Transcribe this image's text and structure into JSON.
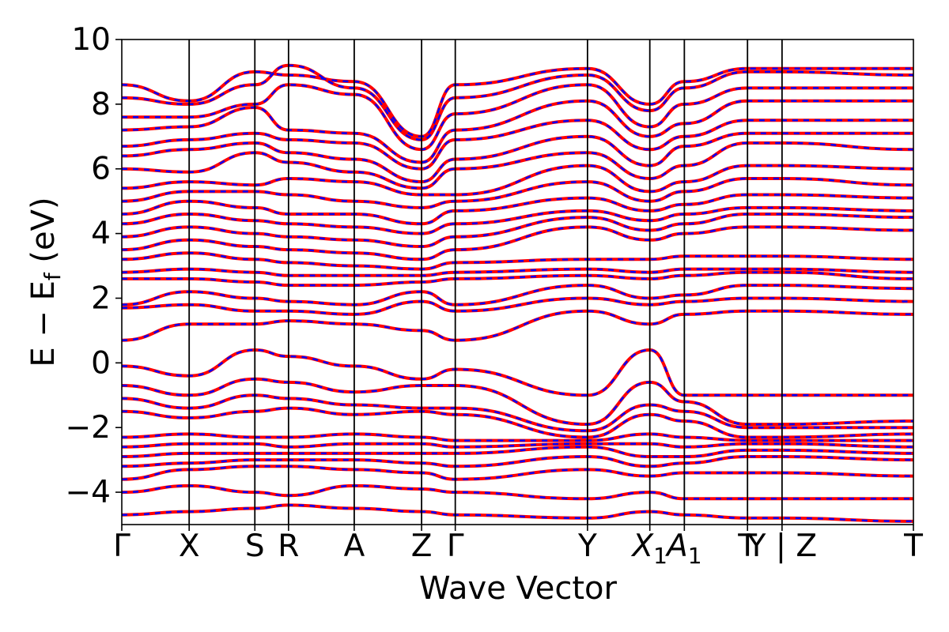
{
  "chart_data": {
    "type": "line",
    "title": "",
    "xlabel": "Wave Vector",
    "ylabel_main": "E − E",
    "ylabel_sub": "f",
    "ylabel_unit": " (eV)",
    "ylim": [
      -5,
      10
    ],
    "yticks": [
      {
        "value": -4,
        "label": "−4"
      },
      {
        "value": -2,
        "label": "−2"
      },
      {
        "value": 0,
        "label": "0"
      },
      {
        "value": 2,
        "label": "2"
      },
      {
        "value": 4,
        "label": "4"
      },
      {
        "value": 6,
        "label": "6"
      },
      {
        "value": 8,
        "label": "8"
      },
      {
        "value": 10,
        "label": "10"
      }
    ],
    "xlim": [
      0,
      9.4
    ],
    "kpoints": [
      {
        "pos": 0.0,
        "label": "Γ"
      },
      {
        "pos": 0.8,
        "label": "X"
      },
      {
        "pos": 1.58,
        "label": "S"
      },
      {
        "pos": 1.98,
        "label": "R"
      },
      {
        "pos": 2.76,
        "label": "A"
      },
      {
        "pos": 3.56,
        "label": "Z"
      },
      {
        "pos": 3.96,
        "label": "Γ"
      },
      {
        "pos": 5.53,
        "label": "Y"
      },
      {
        "pos": 6.27,
        "label": "X",
        "sub": "1"
      },
      {
        "pos": 6.68,
        "label": "A",
        "sub": "1"
      },
      {
        "pos": 7.43,
        "label": "T"
      },
      {
        "pos": 7.84,
        "label": "Y | Z"
      },
      {
        "pos": 9.4,
        "label": "T"
      }
    ],
    "series": [
      {
        "color": "#ff0000",
        "style": "solid",
        "width": 4
      },
      {
        "color": "#0000ff",
        "style": "dashed",
        "width": 2.5
      }
    ],
    "bands_sampled": [
      [
        8.6,
        8.1,
        9.0,
        8.9,
        8.7,
        7.0,
        8.6,
        9.1,
        8.0,
        8.7,
        9.1,
        9.1,
        9.1
      ],
      [
        8.2,
        8.0,
        8.6,
        9.2,
        8.5,
        6.9,
        8.2,
        8.9,
        7.8,
        8.5,
        9.0,
        9.0,
        8.9
      ],
      [
        7.6,
        7.6,
        8.0,
        8.6,
        8.3,
        6.6,
        7.7,
        8.6,
        7.3,
        8.0,
        8.5,
        8.5,
        8.5
      ],
      [
        7.2,
        7.3,
        7.9,
        7.2,
        7.1,
        6.2,
        7.2,
        8.1,
        7.0,
        7.4,
        8.1,
        8.1,
        8.1
      ],
      [
        6.7,
        6.9,
        7.1,
        6.9,
        6.8,
        6.0,
        6.9,
        7.5,
        6.6,
        7.0,
        7.5,
        7.5,
        7.5
      ],
      [
        6.4,
        6.6,
        6.8,
        6.5,
        6.3,
        5.6,
        6.3,
        7.0,
        6.1,
        6.7,
        7.1,
        7.1,
        7.1
      ],
      [
        6.0,
        5.9,
        6.5,
        6.2,
        5.9,
        5.4,
        6.0,
        6.5,
        5.7,
        6.1,
        6.8,
        6.8,
        6.6
      ],
      [
        5.4,
        5.6,
        5.5,
        5.7,
        5.6,
        5.2,
        5.2,
        6.1,
        5.3,
        5.6,
        6.1,
        6.1,
        6.0
      ],
      [
        5.0,
        5.3,
        5.3,
        5.2,
        5.0,
        4.8,
        5.0,
        5.6,
        5.0,
        5.3,
        5.7,
        5.7,
        5.5
      ],
      [
        4.6,
        5.0,
        4.8,
        4.6,
        4.6,
        4.3,
        4.7,
        5.1,
        4.7,
        4.9,
        5.2,
        5.2,
        5.1
      ],
      [
        4.3,
        4.6,
        4.4,
        4.3,
        4.2,
        4.0,
        4.3,
        4.7,
        4.4,
        4.6,
        4.8,
        4.8,
        4.7
      ],
      [
        3.9,
        4.2,
        4.0,
        3.9,
        3.8,
        3.6,
        3.9,
        4.5,
        4.1,
        4.3,
        4.6,
        4.6,
        4.5
      ],
      [
        3.5,
        3.8,
        3.6,
        3.5,
        3.4,
        3.2,
        3.5,
        4.2,
        3.8,
        4.0,
        4.2,
        4.2,
        4.1
      ],
      [
        3.2,
        3.4,
        3.2,
        3.1,
        3.0,
        2.9,
        3.1,
        3.2,
        3.2,
        3.3,
        3.3,
        3.3,
        3.2
      ],
      [
        2.8,
        2.9,
        2.8,
        2.7,
        2.7,
        2.7,
        2.8,
        2.9,
        2.8,
        2.9,
        2.9,
        2.9,
        2.8
      ],
      [
        2.6,
        2.6,
        2.5,
        2.4,
        2.4,
        2.5,
        2.6,
        2.7,
        2.6,
        2.7,
        2.8,
        2.8,
        2.6
      ],
      [
        1.8,
        2.2,
        2.0,
        1.9,
        1.8,
        2.2,
        1.8,
        2.4,
        2.0,
        2.1,
        2.4,
        2.4,
        2.3
      ],
      [
        1.7,
        1.8,
        1.6,
        1.6,
        1.5,
        1.9,
        1.6,
        2.0,
        1.8,
        1.9,
        2.0,
        2.0,
        1.9
      ],
      [
        0.7,
        1.2,
        1.2,
        1.3,
        1.2,
        1.0,
        0.7,
        1.6,
        1.2,
        1.5,
        1.6,
        1.6,
        1.5
      ],
      [
        -0.1,
        -0.4,
        0.4,
        0.2,
        -0.1,
        -0.5,
        -0.2,
        -1.0,
        0.4,
        -1.0,
        -1.0,
        -1.0,
        -1.0
      ],
      [
        -0.7,
        -1.0,
        -0.5,
        -0.6,
        -0.9,
        -0.7,
        -0.7,
        -1.9,
        -0.6,
        -1.2,
        -1.9,
        -1.9,
        -1.8
      ],
      [
        -1.1,
        -1.4,
        -1.0,
        -1.1,
        -1.3,
        -1.4,
        -1.4,
        -2.1,
        -1.3,
        -1.5,
        -2.0,
        -2.0,
        -2.0
      ],
      [
        -1.5,
        -1.7,
        -1.5,
        -1.4,
        -1.6,
        -1.5,
        -1.6,
        -2.3,
        -1.6,
        -1.8,
        -2.3,
        -2.3,
        -2.2
      ],
      [
        -2.3,
        -2.2,
        -2.3,
        -2.3,
        -2.2,
        -2.3,
        -2.4,
        -2.4,
        -2.2,
        -2.3,
        -2.4,
        -2.4,
        -2.4
      ],
      [
        -2.6,
        -2.5,
        -2.5,
        -2.6,
        -2.5,
        -2.5,
        -2.6,
        -2.5,
        -2.5,
        -2.6,
        -2.5,
        -2.5,
        -2.6
      ],
      [
        -2.9,
        -2.8,
        -2.8,
        -2.8,
        -2.8,
        -2.8,
        -2.8,
        -2.6,
        -2.9,
        -2.9,
        -2.7,
        -2.7,
        -2.8
      ],
      [
        -3.2,
        -3.1,
        -3.0,
        -3.0,
        -3.0,
        -3.1,
        -3.2,
        -2.9,
        -3.2,
        -3.1,
        -2.9,
        -2.9,
        -3.0
      ],
      [
        -3.6,
        -3.3,
        -3.2,
        -3.2,
        -3.3,
        -3.4,
        -3.6,
        -3.3,
        -3.5,
        -3.4,
        -3.4,
        -3.4,
        -3.5
      ],
      [
        -4.0,
        -3.8,
        -4.0,
        -4.1,
        -3.8,
        -3.9,
        -4.0,
        -4.2,
        -4.0,
        -4.2,
        -4.2,
        -4.2,
        -4.2
      ],
      [
        -4.7,
        -4.6,
        -4.5,
        -4.4,
        -4.5,
        -4.6,
        -4.7,
        -4.8,
        -4.6,
        -4.7,
        -4.8,
        -4.8,
        -4.9
      ]
    ]
  }
}
